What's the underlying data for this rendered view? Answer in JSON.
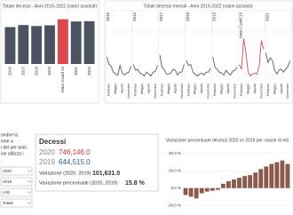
{
  "chart_data": [
    {
      "type": "bar",
      "title": "Totale decessi - Anni 2015-2022 (valori assoluti)",
      "categories": [
        "2016",
        "2017",
        "2018",
        "2019",
        "Anno Covid 19",
        "2021",
        "2022"
      ],
      "values": [
        615000,
        649000,
        633000,
        644515,
        746146,
        709000,
        713000
      ],
      "colors": [
        "#4b5260",
        "#4b5260",
        "#4b5260",
        "#4b5260",
        "#e0474c",
        "#4b5260",
        "#4b5260"
      ],
      "ylim": [
        0,
        800000
      ]
    },
    {
      "type": "line",
      "title": "Totale decessi mensili - Anni 2015-2022 (valori assoluti)",
      "categories": [
        null,
        "Febbraio",
        null,
        null,
        "Maggio",
        null,
        null,
        "Agosto",
        null,
        null,
        "Novembre",
        null
      ],
      "ylim": [
        40000,
        90000
      ],
      "panels": [
        {
          "name": "2015",
          "color": "#555b66",
          "values": [
            66000,
            58000,
            56000,
            50000,
            48000,
            47000,
            57000,
            49000,
            47000,
            49000,
            50000,
            56000
          ]
        },
        {
          "name": "2016",
          "color": "#555b66",
          "values": [
            58000,
            52000,
            53000,
            49000,
            48000,
            46000,
            50000,
            48000,
            46000,
            50000,
            51000,
            57000
          ]
        },
        {
          "name": "2017",
          "color": "#555b66",
          "values": [
            68000,
            55000,
            53000,
            48000,
            48000,
            49000,
            53000,
            52000,
            47000,
            50000,
            50000,
            58000
          ]
        },
        {
          "name": "2018",
          "color": "#555b66",
          "values": [
            62000,
            57000,
            58000,
            50000,
            48000,
            46000,
            48000,
            49000,
            47000,
            50000,
            50000,
            54000
          ]
        },
        {
          "name": "2019",
          "color": "#555b66",
          "values": [
            66000,
            55000,
            53000,
            50000,
            49000,
            47000,
            52000,
            49000,
            47000,
            51000,
            52000,
            55000
          ]
        },
        {
          "name": "Anno Covid 19",
          "color": "#e0474c",
          "values": [
            58000,
            53000,
            85000,
            70000,
            50000,
            46000,
            48000,
            49000,
            48000,
            56000,
            83000,
            74000
          ]
        },
        {
          "name": "2021",
          "color": "#555b66",
          "values": [
            70000,
            60000,
            65000,
            62000,
            52000,
            48000,
            52000,
            53000,
            50000,
            53000,
            56000,
            62000
          ]
        }
      ]
    },
    {
      "type": "bar",
      "title": "Variazione percentuale decessi 2020 vs 2019 per classe di età",
      "categories": [
        null,
        null,
        null,
        null,
        null,
        null,
        null,
        null,
        null,
        null,
        null,
        null,
        null,
        null,
        null,
        null,
        null,
        null,
        null,
        null
      ],
      "values": [
        -8,
        -10,
        -12,
        -6,
        -4,
        -3,
        -2,
        5,
        8,
        10,
        12,
        14,
        15,
        18,
        22,
        25,
        28,
        30,
        32,
        28
      ],
      "color": "#8c5a4a",
      "ylim": [
        -25,
        45
      ],
      "yticks": [
        {
          "value": -20,
          "label": "-20.0 %"
        },
        {
          "value": 0,
          "label": "0.0 %"
        },
        {
          "value": 20,
          "label": "20.0 %"
        },
        {
          "value": 40,
          "label": "40.0 %"
        }
      ]
    }
  ],
  "intro": [
    "ondire la",
    "ione a",
    "i del per anni,",
    "ise utilizza i",
    "."
  ],
  "filters": [
    "2020",
    "2019",
    "(All)",
    "Totale"
  ],
  "kpi": {
    "title": "Decessi",
    "year_a": "2020",
    "value_a": "746,146.0",
    "year_b": "2019",
    "value_b": "644,515.0",
    "change_label": "Variazione (2020, 2019)",
    "change": "101,631.0",
    "pct_label": "Variazione percentuale (2020, 2019)",
    "pct": "15.8 %"
  }
}
